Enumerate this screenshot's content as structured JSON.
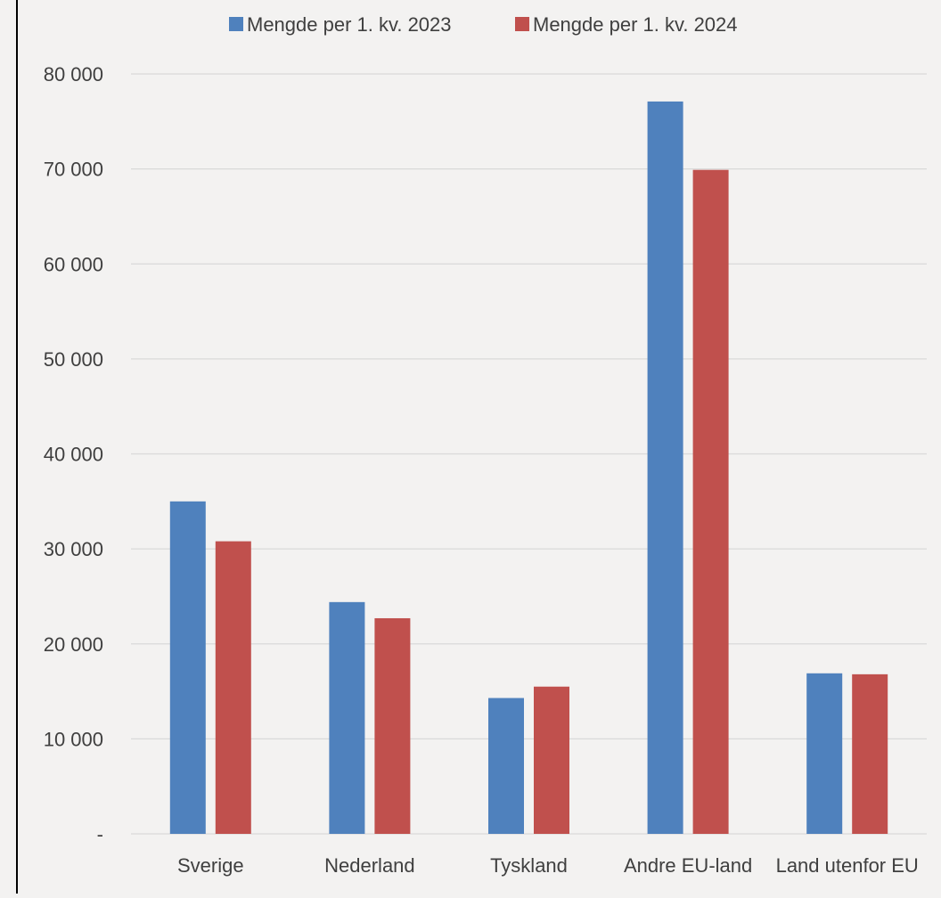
{
  "chart_data": {
    "type": "bar",
    "categories": [
      "Sverige",
      "Nederland",
      "Tyskland",
      "Andre EU-land",
      "Land utenfor EU"
    ],
    "series": [
      {
        "name": "Mengde per 1. kv. 2023",
        "color": "#4f81bd",
        "values": [
          35000,
          24400,
          14300,
          77100,
          16900
        ]
      },
      {
        "name": "Mengde per 1. kv. 2024",
        "color": "#c0504d",
        "values": [
          30800,
          22700,
          15500,
          69900,
          16800
        ]
      }
    ],
    "yticks": [
      {
        "value": 0,
        "label": "-"
      },
      {
        "value": 10000,
        "label": "10 000"
      },
      {
        "value": 20000,
        "label": "20 000"
      },
      {
        "value": 30000,
        "label": "30 000"
      },
      {
        "value": 40000,
        "label": "40 000"
      },
      {
        "value": 50000,
        "label": "50 000"
      },
      {
        "value": 60000,
        "label": "60 000"
      },
      {
        "value": 70000,
        "label": "70 000"
      },
      {
        "value": 80000,
        "label": "80 000"
      }
    ],
    "ylim": [
      0,
      80000
    ],
    "grid": true,
    "legend_position": "top"
  }
}
